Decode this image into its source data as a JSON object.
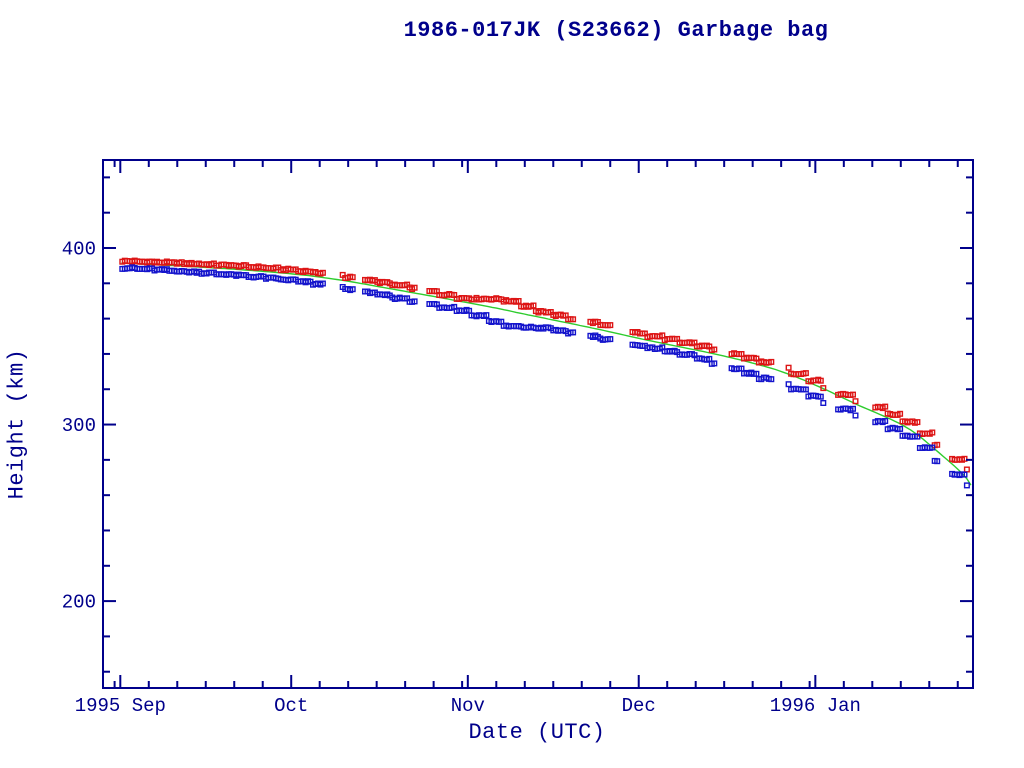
{
  "window": {
    "background": "#ffffff"
  },
  "colors": {
    "axis": "#00008b",
    "text": "#00008b",
    "apogee_marker": "#dd1515",
    "perigee_marker": "#1414cc",
    "fit_line": "#2ecc2e",
    "background": "#ffffff"
  },
  "chart_data": {
    "type": "scatter",
    "title": "1986-017JK (S23662) Garbage bag",
    "xlabel": "Date (UTC)",
    "ylabel": "Height (km)",
    "legend": "none",
    "grid": "off",
    "x_axis": {
      "unit": "days since 1995-09-01 00:00 UTC",
      "range_days": [
        -3,
        149.7
      ],
      "major_ticks": [
        {
          "day": 0,
          "label": "1995 Sep"
        },
        {
          "day": 30,
          "label": "Oct"
        },
        {
          "day": 61,
          "label": "Nov"
        },
        {
          "day": 91,
          "label": "Dec"
        },
        {
          "day": 122,
          "label": "1996 Jan"
        }
      ],
      "minor_tick_days": [
        -1,
        5,
        10,
        15,
        20,
        25,
        35,
        40,
        45,
        50,
        55,
        60,
        66,
        71,
        76,
        81,
        86,
        96,
        101,
        106,
        111,
        116,
        121,
        127,
        132,
        137,
        142,
        147
      ]
    },
    "y_axis": {
      "unit": "km",
      "range_km": [
        150,
        450
      ],
      "major_ticks": [
        {
          "km": 200,
          "label": "200"
        },
        {
          "km": 300,
          "label": "300"
        },
        {
          "km": 400,
          "label": "400"
        }
      ],
      "minor_tick_km": [
        160,
        180,
        220,
        240,
        260,
        280,
        320,
        340,
        360,
        380,
        420,
        440
      ]
    },
    "series": [
      {
        "name": "apogee-height",
        "kind": "scatter",
        "marker": "open-square",
        "color": "#dd1515",
        "points": [
          [
            0,
            392.7
          ],
          [
            5,
            392.1
          ],
          [
            10,
            391.5
          ],
          [
            15,
            390.8
          ],
          [
            20,
            390.0
          ],
          [
            25,
            388.9
          ],
          [
            30,
            387.6
          ],
          [
            36,
            385.5
          ],
          [
            44,
            381.6
          ],
          [
            52,
            377.0
          ],
          [
            58,
            373.1
          ],
          [
            61,
            371.0
          ],
          [
            64,
            371.4
          ],
          [
            66,
            371.1
          ],
          [
            68,
            370.4
          ],
          [
            70,
            368.6
          ],
          [
            72,
            366.1
          ],
          [
            74,
            363.9
          ],
          [
            78,
            361.0
          ],
          [
            84,
            356.9
          ],
          [
            88,
            354.1
          ],
          [
            91,
            351.9
          ],
          [
            95,
            349.1
          ],
          [
            99,
            346.5
          ],
          [
            103,
            343.8
          ],
          [
            106,
            341.6
          ],
          [
            109,
            339.1
          ],
          [
            112,
            336.5
          ],
          [
            115,
            333.6
          ],
          [
            118,
            330.1
          ],
          [
            122,
            324.4
          ],
          [
            125,
            320.3
          ],
          [
            128,
            315.9
          ],
          [
            131,
            312.0
          ],
          [
            134,
            308.3
          ],
          [
            138,
            302.4
          ],
          [
            142,
            293.4
          ],
          [
            146,
            283.0
          ],
          [
            148,
            277.0
          ],
          [
            148.8,
            274.2
          ]
        ]
      },
      {
        "name": "perigee-height",
        "kind": "scatter",
        "marker": "open-square",
        "color": "#1414cc",
        "points": [
          [
            0,
            388.9
          ],
          [
            5,
            387.9
          ],
          [
            10,
            387.0
          ],
          [
            15,
            385.9
          ],
          [
            20,
            384.7
          ],
          [
            25,
            383.3
          ],
          [
            30,
            381.7
          ],
          [
            36,
            379.0
          ],
          [
            44,
            374.5
          ],
          [
            52,
            369.7
          ],
          [
            58,
            366.0
          ],
          [
            61,
            364.0
          ],
          [
            64,
            360.4
          ],
          [
            66,
            358.0
          ],
          [
            68,
            355.8
          ],
          [
            70,
            355.0
          ],
          [
            72,
            355.1
          ],
          [
            74,
            354.7
          ],
          [
            78,
            352.7
          ],
          [
            84,
            349.2
          ],
          [
            88,
            346.7
          ],
          [
            91,
            344.8
          ],
          [
            95,
            342.4
          ],
          [
            99,
            339.7
          ],
          [
            103,
            336.3
          ],
          [
            106,
            333.4
          ],
          [
            109,
            330.4
          ],
          [
            112,
            327.5
          ],
          [
            115,
            324.4
          ],
          [
            118,
            320.9
          ],
          [
            122,
            315.6
          ],
          [
            125,
            311.6
          ],
          [
            128,
            307.6
          ],
          [
            131,
            303.7
          ],
          [
            134,
            300.2
          ],
          [
            138,
            294.3
          ],
          [
            142,
            285.2
          ],
          [
            146,
            274.5
          ],
          [
            148,
            268.4
          ],
          [
            148.8,
            265.2
          ]
        ]
      },
      {
        "name": "decay-fit-line",
        "kind": "line",
        "color": "#2ecc2e",
        "points": [
          [
            0.2,
            391.5
          ],
          [
            5,
            390.7
          ],
          [
            10,
            389.9
          ],
          [
            15,
            389.0
          ],
          [
            20,
            388.0
          ],
          [
            25,
            386.8
          ],
          [
            30,
            385.4
          ],
          [
            33,
            384.4
          ],
          [
            36,
            383.1
          ],
          [
            40,
            381.2
          ],
          [
            44,
            378.9
          ],
          [
            48,
            376.6
          ],
          [
            52,
            374.3
          ],
          [
            56,
            372.0
          ],
          [
            61,
            369.0
          ],
          [
            64,
            367.2
          ],
          [
            67,
            365.3
          ],
          [
            70,
            363.2
          ],
          [
            73,
            361.2
          ],
          [
            76,
            359.2
          ],
          [
            80,
            356.6
          ],
          [
            84,
            353.9
          ],
          [
            88,
            351.0
          ],
          [
            91,
            348.8
          ],
          [
            94,
            346.8
          ],
          [
            97,
            344.8
          ],
          [
            100,
            342.9
          ],
          [
            103,
            340.9
          ],
          [
            106,
            338.8
          ],
          [
            109,
            336.5
          ],
          [
            112,
            334.0
          ],
          [
            115,
            331.2
          ],
          [
            118,
            327.8
          ],
          [
            121,
            323.8
          ],
          [
            124,
            319.5
          ],
          [
            127,
            314.9
          ],
          [
            130,
            310.3
          ],
          [
            133,
            306.2
          ],
          [
            135,
            303.4
          ],
          [
            137,
            300.2
          ],
          [
            139,
            296.4
          ],
          [
            141,
            291.5
          ],
          [
            143,
            286.0
          ],
          [
            145,
            280.5
          ],
          [
            147,
            274.8
          ],
          [
            148.5,
            269.8
          ],
          [
            149.6,
            264.2
          ]
        ]
      }
    ],
    "data_gaps_days": [
      [
        35.8,
        38.8
      ],
      [
        41.2,
        42.6
      ],
      [
        52.0,
        54.0
      ],
      [
        79.8,
        82.2
      ],
      [
        86.3,
        89.8
      ],
      [
        104.3,
        107.3
      ],
      [
        114.3,
        117.3
      ],
      [
        123.4,
        125.6
      ],
      [
        129.3,
        132.3
      ],
      [
        143.8,
        145.8
      ]
    ],
    "sampling": {
      "first_day": 0.35,
      "last_day": 148.8,
      "points_per_day": 2.3,
      "run_length_days": 2.8,
      "scatter_km": 1.0,
      "marker_px": 4.6
    }
  }
}
